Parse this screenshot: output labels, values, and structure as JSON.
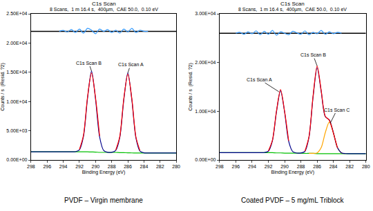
{
  "chart_data": [
    {
      "type": "line",
      "title": "C1s Scan",
      "subtitle": "8 Scans,  1 m 16.4 s,  400µm,  CAE 50.0,  0.10 eV",
      "x_label": "Binding Energy (eV)",
      "y_label": "Counts / s  (Resid. ?2)",
      "caption": "PVDF – Virgin membrane",
      "x": [
        298,
        297.5,
        297,
        296.5,
        296,
        295.5,
        295,
        294.5,
        294,
        293.5,
        293,
        292.5,
        292,
        291.5,
        291,
        290.5,
        290,
        289.5,
        289,
        288.5,
        288,
        287.5,
        287,
        286.5,
        286,
        285.5,
        285,
        284.5,
        284,
        283.5,
        283,
        282.5,
        282,
        281.5,
        281,
        280.5,
        280
      ],
      "xlim": [
        298,
        280
      ],
      "xticks": [
        298,
        296,
        294,
        292,
        290,
        288,
        286,
        284,
        282,
        280
      ],
      "ylim": [
        0,
        25000
      ],
      "yticks": [
        {
          "value": 0,
          "label": "0.00E+00"
        },
        {
          "value": 5000,
          "label": "5.00E+03"
        },
        {
          "value": 10000,
          "label": "1.00E+04"
        },
        {
          "value": 15000,
          "label": "1.50E+04"
        },
        {
          "value": 20000,
          "label": "2.00E+04"
        },
        {
          "value": 25000,
          "label": "2.50E+04"
        }
      ],
      "grid": false,
      "series": [
        {
          "color": "#000000",
          "values": [
            22000,
            22000,
            22000,
            22000,
            22000,
            22000,
            22000,
            22000,
            22000,
            22000,
            22000,
            22000,
            22000,
            22000,
            22000,
            22000,
            22000,
            22000,
            22000,
            22000,
            22000,
            22000,
            22000,
            22000,
            22000,
            22000,
            22000,
            22000,
            22000,
            22000,
            22000,
            22000,
            22000,
            22000,
            22000,
            22000,
            22000
          ]
        },
        {
          "color": "#3399ff",
          "values": [
            null,
            null,
            null,
            null,
            null,
            null,
            null,
            22000,
            22150,
            21900,
            22300,
            21800,
            22400,
            21700,
            22500,
            22200,
            21600,
            22400,
            22000,
            22300,
            21800,
            22200,
            21700,
            22400,
            21900,
            22500,
            21800,
            22200,
            22000,
            22000,
            null,
            null,
            null,
            null,
            null,
            null,
            null
          ]
        },
        {
          "color": "#00c000",
          "values": [
            1400,
            1400,
            1400,
            1400,
            1400,
            1400,
            1400,
            1400,
            1400,
            1400,
            1400,
            1400,
            1400,
            1400,
            1390,
            1370,
            1350,
            1300,
            1300,
            1300,
            1300,
            1300,
            1260,
            1250,
            1230,
            1210,
            1200,
            1200,
            1200,
            1200,
            1200,
            1200,
            1200,
            1200,
            1200,
            1200,
            1200
          ]
        },
        {
          "color": "#00008b",
          "values": [
            1400,
            1400,
            1400,
            1400,
            1400,
            1400,
            1400,
            1400,
            1400,
            1400,
            1400,
            1420,
            1730,
            4020,
            10500,
            15200,
            10400,
            3950,
            1630,
            1320,
            1320,
            1630,
            3850,
            10290,
            14900,
            10240,
            3800,
            1530,
            1220,
            1200,
            1200,
            1200,
            1200,
            1200,
            1200,
            1200,
            1200
          ]
        },
        {
          "color": "#ff0000",
          "values": [
            null,
            null,
            null,
            null,
            null,
            null,
            null,
            null,
            null,
            null,
            null,
            null,
            1800,
            4200,
            10700,
            14900,
            10600,
            4100,
            null,
            null,
            null,
            1700,
            4000,
            10500,
            14700,
            10450,
            3950,
            1600,
            null,
            null,
            null,
            null,
            null,
            null,
            null,
            null,
            null
          ]
        }
      ],
      "annotations": [
        {
          "text": "C1s Scan B",
          "x": 290.5,
          "y": 15200
        },
        {
          "text": "C1s Scan A",
          "x": 286,
          "y": 14900
        }
      ]
    },
    {
      "type": "line",
      "title": "C1s Scan",
      "subtitle": "8 Scans,  1 m 16.4 s,  400µm,  CAE 50.0,  0.10 eV",
      "x_label": "Binding Energy (eV)",
      "y_label": "Counts / s  (Resid. ?2)",
      "caption": "Coated PVDF – 5 mg/mL Triblock",
      "x": [
        298,
        297.5,
        297,
        296.5,
        296,
        295.5,
        295,
        294.5,
        294,
        293.5,
        293,
        292.5,
        292,
        291.5,
        291,
        290.5,
        290,
        289.5,
        289,
        288.5,
        288,
        287.5,
        287,
        286.5,
        286,
        285.5,
        285,
        284.5,
        284,
        283.5,
        283,
        282.5,
        282,
        281.5,
        281,
        280.5,
        280
      ],
      "xlim": [
        298,
        280
      ],
      "xticks": [
        298,
        296,
        294,
        292,
        290,
        288,
        286,
        284,
        282,
        280
      ],
      "ylim": [
        0,
        30000
      ],
      "yticks": [
        {
          "value": 0,
          "label": "0.00E+00"
        },
        {
          "value": 10000,
          "label": "1.00E+04"
        },
        {
          "value": 20000,
          "label": "2.00E+04"
        },
        {
          "value": 30000,
          "label": "3.00E+04"
        }
      ],
      "grid": false,
      "series": [
        {
          "color": "#000000",
          "values": [
            26000,
            26000,
            26000,
            26000,
            26000,
            26000,
            26000,
            26000,
            26000,
            26000,
            26000,
            26000,
            26000,
            26000,
            26000,
            26000,
            26000,
            26000,
            26000,
            26000,
            26000,
            26000,
            26000,
            26000,
            26000,
            26000,
            26000,
            26000,
            26000,
            26000,
            26000,
            26000,
            26000,
            26000,
            26000,
            26000,
            26000
          ]
        },
        {
          "color": "#3399ff",
          "values": [
            null,
            null,
            null,
            null,
            26000,
            26200,
            25800,
            26300,
            25900,
            26500,
            25700,
            26400,
            25800,
            26600,
            25600,
            26300,
            26000,
            25700,
            26400,
            26100,
            25800,
            26500,
            25700,
            26200,
            25900,
            26600,
            25800,
            26300,
            25900,
            26200,
            26000,
            null,
            null,
            null,
            null,
            null,
            null
          ]
        },
        {
          "color": "#00c000",
          "values": [
            1500,
            1500,
            1500,
            1500,
            1500,
            1500,
            1500,
            1500,
            1500,
            1500,
            1500,
            1500,
            1500,
            1500,
            1450,
            1450,
            1400,
            1400,
            1400,
            1400,
            1400,
            1350,
            1350,
            1350,
            1300,
            1300,
            1300,
            1300,
            1300,
            1300,
            1300,
            1300,
            1300,
            1300,
            1300,
            1300,
            1300
          ]
        },
        {
          "color": "#ffa500",
          "values": [
            null,
            null,
            null,
            null,
            null,
            null,
            null,
            null,
            null,
            null,
            null,
            null,
            null,
            null,
            null,
            null,
            null,
            null,
            null,
            null,
            null,
            null,
            1350,
            1360,
            1456,
            2535,
            5590,
            7800,
            5590,
            2535,
            1456,
            1309,
            null,
            null,
            null,
            null,
            null
          ]
        },
        {
          "color": "#00008b",
          "values": [
            1500,
            1500,
            1500,
            1500,
            1500,
            1500,
            1500,
            1500,
            1500,
            1500,
            1500,
            1520,
            1810,
            3930,
            9900,
            14250,
            9850,
            3830,
            1710,
            1420,
            1425,
            1770,
            4675,
            12910,
            18960,
            14085,
            8915,
            8220,
            5615,
            2535,
            1456,
            1309,
            1300,
            1300,
            1300,
            1300,
            1300
          ]
        },
        {
          "color": "#ff0000",
          "values": [
            null,
            null,
            null,
            null,
            null,
            null,
            null,
            null,
            null,
            null,
            null,
            null,
            1850,
            4050,
            10050,
            14450,
            9950,
            3900,
            null,
            null,
            null,
            1800,
            4800,
            13100,
            19300,
            14250,
            9000,
            8150,
            5500,
            2500,
            null,
            null,
            null,
            null,
            null,
            null,
            null
          ]
        }
      ],
      "annotations": [
        {
          "text": "C1s Scan A",
          "x": 290.7,
          "y": 14000
        },
        {
          "text": "C1s Scan B",
          "x": 286,
          "y": 19300
        },
        {
          "text": "C1s Scan C",
          "x": 284.4,
          "y": 7500
        }
      ]
    }
  ]
}
